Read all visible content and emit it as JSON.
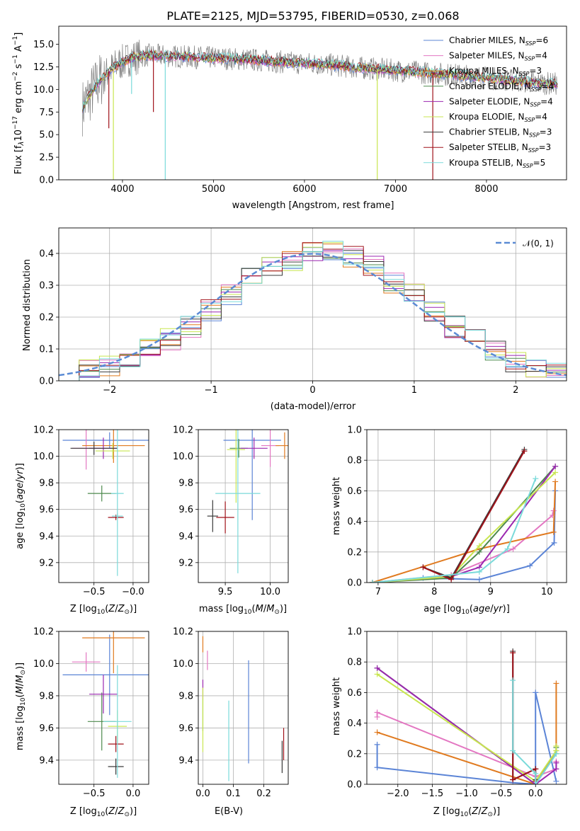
{
  "colors": {
    "Chabrier MILES": "#5b84d6",
    "Salpeter MILES": "#e377c2",
    "Kroupa MILES": "#e07a1f",
    "Chabrier ELODIE": "#4e8a4e",
    "Salpeter ELODIE": "#9b27b0",
    "Kroupa ELODIE": "#c8e650",
    "Chabrier STELIB": "#3a3a3a",
    "Salpeter STELIB": "#a0121a",
    "Kroupa STELIB": "#7adada",
    "data": "#808080",
    "normal": "#5b8bd4"
  },
  "chart_data": [
    {
      "id": "spectrum",
      "type": "line",
      "title": "PLATE=2125, MJD=53795, FIBERID=0530, z=0.068",
      "xlabel": "wavelength [Angstrom, rest frame]",
      "ylabel": "Flux [f_λ10^-17 erg cm^-2 s^-1 A^-1]",
      "xlim": [
        3300,
        8880
      ],
      "ylim": [
        0,
        17
      ],
      "xticks": [
        4000,
        5000,
        6000,
        7000,
        8000
      ],
      "yticks": [
        0.0,
        2.5,
        5.0,
        7.5,
        10.0,
        12.5,
        15.0
      ],
      "legend": [
        "Chabrier MILES, N_SSP=6",
        "Salpeter MILES, N_SSP=4",
        "Kroupa MILES, N_SSP=3",
        "Chabrier ELODIE, N_SSP=4",
        "Salpeter ELODIE, N_SSP=4",
        "Kroupa ELODIE, N_SSP=4",
        "Chabrier STELIB, N_SSP=3",
        "Salpeter STELIB, N_SSP=3",
        "Kroupa STELIB, N_SSP=5"
      ],
      "legend_position": "upper right",
      "continuum": [
        [
          3560,
          8.0
        ],
        [
          3650,
          9.5
        ],
        [
          3750,
          11.0
        ],
        [
          3850,
          12.0
        ],
        [
          3950,
          12.8
        ],
        [
          4100,
          13.5
        ],
        [
          4300,
          13.8
        ],
        [
          4500,
          13.7
        ],
        [
          4700,
          13.6
        ],
        [
          5000,
          13.5
        ],
        [
          5400,
          13.3
        ],
        [
          5800,
          13.0
        ],
        [
          6200,
          12.8
        ],
        [
          6600,
          12.4
        ],
        [
          7000,
          12.1
        ],
        [
          7400,
          11.8
        ],
        [
          7800,
          11.5
        ],
        [
          8200,
          11.1
        ],
        [
          8600,
          10.7
        ],
        [
          8780,
          10.6
        ]
      ]
    },
    {
      "id": "residuals",
      "type": "line",
      "xlabel": "(data-model)/error",
      "ylabel": "Normed distribution",
      "xlim": [
        -2.5,
        2.5
      ],
      "ylim": [
        0,
        0.48
      ],
      "xticks": [
        -2,
        -1,
        0,
        1,
        2
      ],
      "yticks": [
        0.0,
        0.1,
        0.2,
        0.3,
        0.4
      ],
      "legend": [
        "𝒩(0, 1)"
      ],
      "legend_position": "upper right",
      "bin_edges": [
        -2.5,
        -2.3,
        -2.1,
        -1.9,
        -1.7,
        -1.5,
        -1.3,
        -1.1,
        -0.9,
        -0.7,
        -0.5,
        -0.3,
        -0.1,
        0.1,
        0.3,
        0.5,
        0.7,
        0.9,
        1.1,
        1.3,
        1.5,
        1.7,
        1.9,
        2.1,
        2.3,
        2.5
      ],
      "hist_mean": [
        0.02,
        0.04,
        0.05,
        0.07,
        0.1,
        0.13,
        0.17,
        0.22,
        0.27,
        0.32,
        0.36,
        0.38,
        0.4,
        0.41,
        0.39,
        0.36,
        0.31,
        0.27,
        0.22,
        0.17,
        0.13,
        0.09,
        0.06,
        0.04,
        0.03
      ]
    },
    {
      "id": "age-vs-Z",
      "type": "scatter",
      "xlabel": "Z [log10(Z/Z⊙)]",
      "ylabel": "age [log10(age/yr)]",
      "xlim": [
        -0.95,
        0.2
      ],
      "ylim": [
        9.05,
        10.2
      ],
      "xticks": [
        -0.5,
        -0.0
      ],
      "yticks": [
        9.2,
        9.4,
        9.6,
        9.8,
        10.0,
        10.2
      ],
      "points": [
        {
          "model": "Chabrier MILES",
          "x": -0.3,
          "xerr": 0.6,
          "y": 10.12,
          "yerr": 0.06
        },
        {
          "model": "Salpeter MILES",
          "x": -0.6,
          "xerr": 0.18,
          "y": 10.06,
          "yerr": 0.16
        },
        {
          "model": "Kroupa MILES",
          "x": -0.25,
          "xerr": 0.4,
          "y": 10.08,
          "yerr": 0.13
        },
        {
          "model": "Chabrier ELODIE",
          "x": -0.4,
          "xerr": 0.18,
          "y": 9.72,
          "yerr": 0.06
        },
        {
          "model": "Salpeter ELODIE",
          "x": -0.38,
          "xerr": 0.18,
          "y": 10.06,
          "yerr": 0.08
        },
        {
          "model": "Kroupa ELODIE",
          "x": -0.26,
          "xerr": 0.22,
          "y": 10.04,
          "yerr": 0.06
        },
        {
          "model": "Chabrier STELIB",
          "x": -0.5,
          "xerr": 0.3,
          "y": 10.06,
          "yerr": 0.05
        },
        {
          "model": "Salpeter STELIB",
          "x": -0.22,
          "xerr": 0.1,
          "y": 9.54,
          "yerr": 0.02
        },
        {
          "model": "Kroupa STELIB",
          "x": -0.2,
          "xerr": 0.07,
          "y": 9.55,
          "yerr": 0.02
        },
        {
          "model": "Kroupa STELIB",
          "x": -0.2,
          "xerr": 0.08,
          "y": 9.72,
          "yerr": 0.62
        }
      ]
    },
    {
      "id": "age-vs-mass",
      "type": "scatter",
      "xlabel": "mass [log10(M/M⊙)]",
      "ylabel": "",
      "xlim": [
        9.2,
        10.2
      ],
      "ylim": [
        9.05,
        10.2
      ],
      "xticks": [
        9.5,
        10.0
      ],
      "yticks": [
        9.2,
        9.4,
        9.6,
        9.8,
        10.0,
        10.2
      ],
      "points": [
        {
          "model": "Chabrier MILES",
          "x": 9.8,
          "xerr": 0.32,
          "y": 10.12,
          "yerr": 0.6
        },
        {
          "model": "Salpeter MILES",
          "x": 10.0,
          "xerr": 0.1,
          "y": 10.08,
          "yerr": 0.16
        },
        {
          "model": "Kroupa MILES",
          "x": 10.16,
          "xerr": 0.1,
          "y": 10.08,
          "yerr": 0.1
        },
        {
          "model": "Chabrier ELODIE",
          "x": 9.65,
          "xerr": 0.1,
          "y": 10.06,
          "yerr": 0.07
        },
        {
          "model": "Salpeter ELODIE",
          "x": 9.82,
          "xerr": 0.15,
          "y": 10.06,
          "yerr": 0.08
        },
        {
          "model": "Kroupa ELODIE",
          "x": 9.62,
          "xerr": 0.1,
          "y": 10.05,
          "yerr": 0.4
        },
        {
          "model": "Chabrier STELIB",
          "x": 9.36,
          "xerr": 0.06,
          "y": 9.55,
          "yerr": 0.12
        },
        {
          "model": "Salpeter STELIB",
          "x": 9.5,
          "xerr": 0.1,
          "y": 9.54,
          "yerr": 0.12
        },
        {
          "model": "Kroupa STELIB",
          "x": 9.64,
          "xerr": 0.25,
          "y": 9.72,
          "yerr": 0.6
        }
      ]
    },
    {
      "id": "weight-vs-age",
      "type": "line",
      "xlabel": "age [log10(age/yr)]",
      "ylabel": "mass weight",
      "xlim": [
        6.8,
        10.35
      ],
      "ylim": [
        0,
        1.0
      ],
      "xticks": [
        7,
        8,
        9,
        10
      ],
      "yticks": [
        0.0,
        0.2,
        0.4,
        0.6,
        0.8,
        1.0
      ],
      "series": [
        {
          "model": "Chabrier MILES",
          "x": [
            6.9,
            7.8,
            8.8,
            9.7,
            10.13,
            10.15
          ],
          "y": [
            0.0,
            0.03,
            0.02,
            0.11,
            0.26,
            0.6
          ]
        },
        {
          "model": "Salpeter MILES",
          "x": [
            6.9,
            8.3,
            9.4,
            10.1,
            10.12
          ],
          "y": [
            0.0,
            0.05,
            0.22,
            0.44,
            0.47
          ]
        },
        {
          "model": "Kroupa MILES",
          "x": [
            6.9,
            8.8,
            10.12,
            10.15
          ],
          "y": [
            0.0,
            0.22,
            0.33,
            0.66
          ]
        },
        {
          "model": "Chabrier ELODIE",
          "x": [
            6.9,
            8.3,
            8.8,
            10.15
          ],
          "y": [
            0.0,
            0.03,
            0.2,
            0.76
          ]
        },
        {
          "model": "Salpeter ELODIE",
          "x": [
            6.9,
            8.3,
            8.8,
            10.15
          ],
          "y": [
            0.0,
            0.04,
            0.1,
            0.76
          ]
        },
        {
          "model": "Kroupa ELODIE",
          "x": [
            6.9,
            8.3,
            8.8,
            10.15
          ],
          "y": [
            0.0,
            0.04,
            0.24,
            0.72
          ]
        },
        {
          "model": "Chabrier STELIB",
          "x": [
            7.8,
            8.3,
            9.6
          ],
          "y": [
            0.1,
            0.03,
            0.87
          ]
        },
        {
          "model": "Salpeter STELIB",
          "x": [
            7.8,
            8.3,
            9.6
          ],
          "y": [
            0.1,
            0.02,
            0.86
          ]
        },
        {
          "model": "Kroupa STELIB",
          "x": [
            6.9,
            8.8,
            9.3,
            9.8
          ],
          "y": [
            0.0,
            0.07,
            0.22,
            0.68
          ]
        }
      ]
    },
    {
      "id": "mass-vs-Z",
      "type": "scatter",
      "xlabel": "Z [log10(Z/Z⊙)]",
      "ylabel": "mass [log10(M/M⊙)]",
      "xlim": [
        -0.95,
        0.2
      ],
      "ylim": [
        9.25,
        10.2
      ],
      "xticks": [
        -0.5,
        0.0
      ],
      "yticks": [
        9.4,
        9.6,
        9.8,
        10.0,
        10.2
      ],
      "points": [
        {
          "model": "Chabrier MILES",
          "x": -0.3,
          "xerr": 0.6,
          "y": 9.93,
          "yerr": 0.25
        },
        {
          "model": "Salpeter MILES",
          "x": -0.6,
          "xerr": 0.18,
          "y": 10.01,
          "yerr": 0.06
        },
        {
          "model": "Kroupa MILES",
          "x": -0.25,
          "xerr": 0.4,
          "y": 10.16,
          "yerr": 0.22
        },
        {
          "model": "Chabrier ELODIE",
          "x": -0.4,
          "xerr": 0.18,
          "y": 9.64,
          "yerr": 0.18
        },
        {
          "model": "Salpeter ELODIE",
          "x": -0.38,
          "xerr": 0.18,
          "y": 9.81,
          "yerr": 0.12
        },
        {
          "model": "Kroupa ELODIE",
          "x": -0.2,
          "xerr": 0.12,
          "y": 9.61,
          "yerr": 0.1
        },
        {
          "model": "Chabrier STELIB",
          "x": -0.22,
          "xerr": 0.1,
          "y": 9.36,
          "yerr": 0.05
        },
        {
          "model": "Salpeter STELIB",
          "x": -0.22,
          "xerr": 0.1,
          "y": 9.5,
          "yerr": 0.05
        },
        {
          "model": "Kroupa STELIB",
          "x": -0.2,
          "xerr": 0.18,
          "y": 9.64,
          "yerr": 0.35
        }
      ]
    },
    {
      "id": "mass-vs-ebv",
      "type": "scatter",
      "xlabel": "E(B-V)",
      "ylabel": "",
      "xlim": [
        -0.015,
        0.28
      ],
      "ylim": [
        9.25,
        10.2
      ],
      "xticks": [
        0.0,
        0.1,
        0.2
      ],
      "yticks": [
        9.4,
        9.6,
        9.8,
        10.0,
        10.2
      ],
      "points": [
        {
          "model": "Chabrier MILES",
          "x": 0.15,
          "xerr": 0,
          "y": 9.7,
          "yerr": 0.32
        },
        {
          "model": "Salpeter MILES",
          "x": 0.015,
          "xerr": 0,
          "y": 10.02,
          "yerr": 0.06
        },
        {
          "model": "Kroupa MILES",
          "x": 0.0,
          "xerr": 0,
          "y": 10.12,
          "yerr": 0.05
        },
        {
          "model": "Chabrier ELODIE",
          "x": 0.0,
          "xerr": 0,
          "y": 9.68,
          "yerr": 0.1
        },
        {
          "model": "Salpeter ELODIE",
          "x": 0.0,
          "xerr": 0,
          "y": 9.84,
          "yerr": 0.06
        },
        {
          "model": "Kroupa ELODIE",
          "x": 0.0,
          "xerr": 0,
          "y": 9.65,
          "yerr": 0.2
        },
        {
          "model": "Chabrier STELIB",
          "x": 0.26,
          "xerr": 0,
          "y": 9.42,
          "yerr": 0.1
        },
        {
          "model": "Salpeter STELIB",
          "x": 0.265,
          "xerr": 0,
          "y": 9.5,
          "yerr": 0.1
        },
        {
          "model": "Kroupa STELIB",
          "x": 0.085,
          "xerr": 0,
          "y": 9.52,
          "yerr": 0.25
        }
      ]
    },
    {
      "id": "weight-vs-Z",
      "type": "line",
      "xlabel": "Z [log10(Z/Z⊙)]",
      "ylabel": "mass weight",
      "xlim": [
        -2.45,
        0.45
      ],
      "ylim": [
        0,
        1.0
      ],
      "xticks": [
        -2.0,
        -1.5,
        -1.0,
        -0.5,
        0.0
      ],
      "yticks": [
        0.0,
        0.2,
        0.4,
        0.6,
        0.8,
        1.0
      ],
      "series": [
        {
          "model": "Chabrier MILES",
          "x": [
            -2.3,
            -2.3,
            -0.33,
            0.0,
            0.0,
            0.3
          ],
          "y": [
            0.26,
            0.11,
            0.01,
            0.0,
            0.6,
            0.02
          ]
        },
        {
          "model": "Salpeter MILES",
          "x": [
            -2.3,
            -2.3,
            0.0,
            0.3,
            0.3
          ],
          "y": [
            0.44,
            0.47,
            0.05,
            0.1,
            0.15
          ]
        },
        {
          "model": "Kroupa MILES",
          "x": [
            -2.3,
            0.0,
            0.3,
            0.3
          ],
          "y": [
            0.34,
            0.0,
            0.22,
            0.66
          ]
        },
        {
          "model": "Chabrier ELODIE",
          "x": [
            -2.3,
            0.0,
            0.3,
            0.3
          ],
          "y": [
            0.76,
            0.0,
            0.2,
            0.24
          ]
        },
        {
          "model": "Salpeter ELODIE",
          "x": [
            -2.3,
            0.0,
            0.3,
            0.3
          ],
          "y": [
            0.76,
            0.0,
            0.1,
            0.14
          ]
        },
        {
          "model": "Kroupa ELODIE",
          "x": [
            -2.3,
            0.0,
            0.3,
            0.3
          ],
          "y": [
            0.72,
            0.02,
            0.22,
            0.25
          ]
        },
        {
          "model": "Chabrier STELIB",
          "x": [
            -0.33,
            -0.33,
            0.0,
            0.0
          ],
          "y": [
            0.87,
            0.03,
            0.1,
            0.03
          ]
        },
        {
          "model": "Salpeter STELIB",
          "x": [
            -0.33,
            -0.33,
            0.0,
            0.0
          ],
          "y": [
            0.86,
            0.03,
            0.1,
            0.02
          ]
        },
        {
          "model": "Kroupa STELIB",
          "x": [
            -0.33,
            -0.33,
            0.0,
            0.0,
            0.3
          ],
          "y": [
            0.68,
            0.22,
            0.07,
            0.0,
            0.2
          ]
        }
      ]
    }
  ]
}
